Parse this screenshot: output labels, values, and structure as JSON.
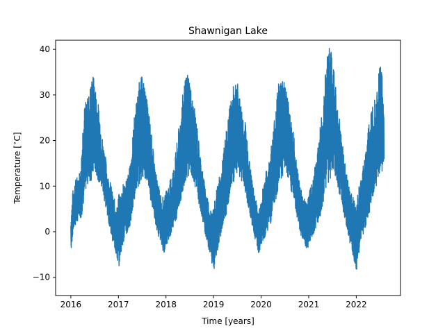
{
  "chart_data": {
    "type": "line",
    "title": "Shawnigan Lake",
    "xlabel": "Time [years]",
    "ylabel": "Temperature [$^\\circ$C]",
    "xlim": [
      2015.68,
      2022.93
    ],
    "ylim": [
      -14,
      42
    ],
    "xticks": [
      2016,
      2017,
      2018,
      2019,
      2020,
      2021,
      2022
    ],
    "yticks": [
      -10,
      0,
      10,
      20,
      30,
      40
    ],
    "grid": false,
    "series": [
      {
        "color": "#1f77b4",
        "x": [
          2016.0,
          2016.04,
          2016.08,
          2016.12,
          2016.17,
          2016.21,
          2016.25,
          2016.29,
          2016.33,
          2016.37,
          2016.42,
          2016.46,
          2016.5,
          2016.54,
          2016.58,
          2016.62,
          2016.67,
          2016.71,
          2016.75,
          2016.79,
          2016.83,
          2016.87,
          2016.92,
          2016.96,
          2017.0,
          2017.04,
          2017.08,
          2017.12,
          2017.17,
          2017.21,
          2017.25,
          2017.29,
          2017.33,
          2017.37,
          2017.42,
          2017.46,
          2017.5,
          2017.54,
          2017.58,
          2017.62,
          2017.67,
          2017.71,
          2017.75,
          2017.79,
          2017.83,
          2017.87,
          2017.92,
          2017.96,
          2018.0,
          2018.04,
          2018.08,
          2018.12,
          2018.17,
          2018.21,
          2018.25,
          2018.29,
          2018.33,
          2018.37,
          2018.42,
          2018.46,
          2018.5,
          2018.54,
          2018.58,
          2018.62,
          2018.67,
          2018.71,
          2018.75,
          2018.79,
          2018.83,
          2018.87,
          2018.92,
          2018.96,
          2019.0,
          2019.04,
          2019.08,
          2019.12,
          2019.17,
          2019.21,
          2019.25,
          2019.29,
          2019.33,
          2019.37,
          2019.42,
          2019.46,
          2019.5,
          2019.54,
          2019.58,
          2019.62,
          2019.67,
          2019.71,
          2019.75,
          2019.79,
          2019.83,
          2019.87,
          2019.92,
          2019.96,
          2020.0,
          2020.04,
          2020.08,
          2020.12,
          2020.17,
          2020.21,
          2020.25,
          2020.29,
          2020.33,
          2020.37,
          2020.42,
          2020.46,
          2020.5,
          2020.54,
          2020.58,
          2020.62,
          2020.67,
          2020.71,
          2020.75,
          2020.79,
          2020.83,
          2020.87,
          2020.92,
          2020.96,
          2021.0,
          2021.04,
          2021.08,
          2021.12,
          2021.17,
          2021.21,
          2021.25,
          2021.29,
          2021.33,
          2021.37,
          2021.42,
          2021.46,
          2021.5,
          2021.54,
          2021.58,
          2021.62,
          2021.67,
          2021.71,
          2021.75,
          2021.79,
          2021.83,
          2021.87,
          2021.92,
          2021.96,
          2022.0,
          2022.04,
          2022.08,
          2022.12,
          2022.17,
          2022.21,
          2022.25,
          2022.29,
          2022.33,
          2022.37,
          2022.42,
          2022.46,
          2022.5,
          2022.54,
          2022.58
        ],
        "y_low": [
          -4.5,
          0,
          1,
          2,
          3,
          3,
          5,
          8,
          10,
          11,
          11,
          12,
          13,
          12,
          11,
          10,
          8,
          6,
          4,
          2,
          0,
          -2,
          -4,
          -6,
          -8,
          -5,
          -3,
          -2,
          -1,
          0,
          2,
          4,
          7,
          9,
          10,
          11,
          12,
          12,
          11,
          10,
          7,
          5,
          3,
          1,
          -1,
          -2,
          -4,
          -5,
          -3,
          -2,
          -1,
          0,
          1,
          2,
          4,
          6,
          8,
          10,
          11,
          12,
          13,
          12,
          11,
          9,
          7,
          5,
          3,
          1,
          -1,
          -3,
          -5,
          -7,
          -8.5,
          -6,
          -4,
          -2,
          0,
          1,
          3,
          5,
          8,
          10,
          11,
          12,
          13,
          12,
          11,
          10,
          8,
          6,
          4,
          2,
          0,
          -2,
          -4,
          -5.5,
          -3,
          -2,
          -1,
          0,
          1,
          2,
          4,
          6,
          8,
          10,
          11,
          12,
          13,
          12,
          11,
          9,
          7,
          5,
          3,
          1,
          -1,
          -2,
          -3,
          -4,
          -3,
          -2,
          -1,
          0,
          1,
          2,
          3,
          5,
          8,
          10,
          11,
          12,
          14,
          12,
          11,
          9,
          7,
          5,
          3,
          1,
          -1,
          -3,
          -5,
          -7,
          -8.5,
          -6,
          -3,
          -1,
          0,
          2,
          3,
          5,
          7,
          9,
          10,
          11,
          12,
          13,
          16
        ],
        "y_high": [
          3,
          9,
          11,
          12,
          13,
          14,
          24,
          28,
          29,
          30,
          33,
          35,
          33,
          30,
          28,
          25,
          20,
          18,
          15,
          12,
          11,
          9,
          7,
          5,
          8,
          9,
          10,
          11,
          12,
          13,
          15,
          20,
          25,
          28,
          32,
          34,
          34,
          33,
          30,
          28,
          24,
          20,
          16,
          13,
          11,
          9,
          8,
          7,
          9,
          10,
          11,
          13,
          15,
          18,
          21,
          25,
          28,
          32,
          34,
          35.5,
          34,
          30,
          28,
          26,
          22,
          18,
          15,
          12,
          10,
          8,
          6,
          5,
          5,
          8,
          10,
          12,
          14,
          18,
          21,
          24,
          27,
          30,
          32,
          34,
          33,
          30,
          28,
          26,
          24,
          20,
          16,
          13,
          10,
          8,
          6,
          5,
          8,
          10,
          12,
          14,
          16,
          19,
          22,
          27,
          30,
          33,
          34,
          35,
          33,
          31,
          28,
          26,
          23,
          19,
          15,
          12,
          10,
          8,
          7,
          6,
          8,
          10,
          12,
          14,
          17,
          20,
          24,
          28,
          33,
          36,
          42.5,
          40,
          38,
          36,
          30,
          27,
          24,
          20,
          16,
          13,
          11,
          9,
          8,
          7,
          5,
          9,
          11,
          13,
          16,
          19,
          23,
          26,
          28,
          30,
          32,
          34,
          38,
          37,
          25
        ]
      }
    ]
  }
}
